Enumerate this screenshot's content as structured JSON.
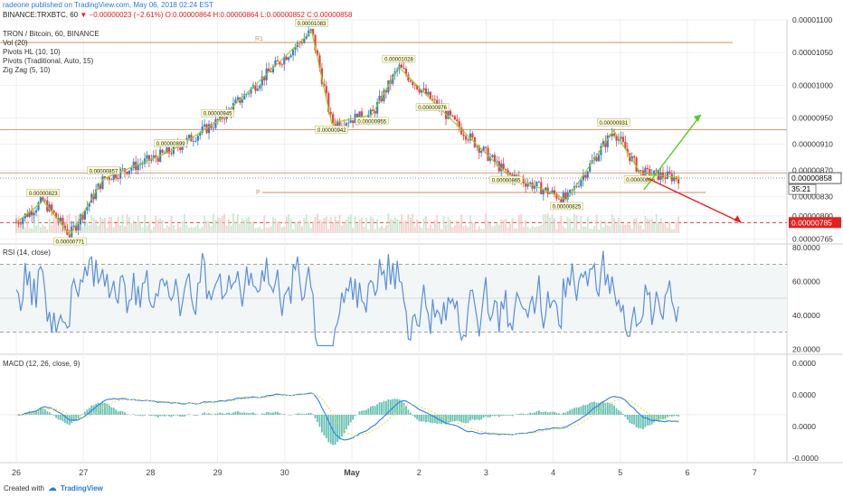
{
  "header": {
    "published": "radeone published on TradingView.com, May 06, 2018 02:24 EST",
    "symbol_line": "BINANCE:TRXBTC, 60",
    "change_text": "▼ −0.00000023 (−2.61%)",
    "ohlc": "O:0.00000864 H:0.00000864 L:0.00000852 C:0.00000858"
  },
  "indicators": {
    "title": "TRON / Bitcoin, 60, BINANCE",
    "vol": "Vol (20)",
    "pivots_hl": "Pivots HL (10, 10)",
    "pivots_trad": "Pivots (Traditional, Auto, 15)",
    "zigzag": "Zig Zag (5, 10)",
    "rsi": "RSI (14, close)",
    "macd": "MACD (12, 26, close, 9)"
  },
  "footer": {
    "created_with": "Created with",
    "brand": "TradingView"
  },
  "colors": {
    "up": "#3a7fc3",
    "down": "#e8413c",
    "zigzag": "#9ccc2e",
    "pivot": "#c89266",
    "rsi": "#5b8fd8",
    "macd": "#2f7fe0",
    "signal": "#e3e34d",
    "hist": "#4cb6a4",
    "green_arrow": "#55cc22",
    "red_arrow": "#e32020",
    "price_label_bg": "#ffffff",
    "red_label_bg": "#e32020"
  },
  "chart_data": [
    {
      "type": "candlestick",
      "title": "TRON / Bitcoin, 60, BINANCE",
      "x_ticks": [
        "26",
        "27",
        "28",
        "29",
        "30",
        "May",
        "2",
        "3",
        "4",
        "5",
        "6",
        "7"
      ],
      "y_ticks": [
        "0.00001100",
        "0.00001050",
        "0.00001000",
        "0.00000950",
        "0.00000910",
        "0.00000870",
        "0.00000858",
        "0.00000830",
        "0.00000800",
        "0.00000785",
        "0.00000765"
      ],
      "ylim": [
        7.6e-06,
        1.1e-05
      ],
      "last_price": "0.00000858",
      "countdown": "35:21",
      "projection_price": "0.00000785",
      "pivot_labels": [
        "R1",
        "P"
      ],
      "pivot_levels": [
        1.06e-05,
        8.36e-06
      ],
      "swing_points": [
        {
          "label": "0.00000771",
          "x": 26.8,
          "y": 7.71e-06,
          "pos": "low"
        },
        {
          "label": "0.00000823",
          "x": 26.4,
          "y": 8.23e-06,
          "pos": "high"
        },
        {
          "label": "0.00000857",
          "x": 27.3,
          "y": 8.57e-06,
          "pos": "high"
        },
        {
          "label": "0.00000899",
          "x": 28.3,
          "y": 8.99e-06,
          "pos": "high"
        },
        {
          "label": "0.00000945",
          "x": 29.0,
          "y": 9.45e-06,
          "pos": "high"
        },
        {
          "label": "0.00001083",
          "x": 30.4,
          "y": 1.083e-05,
          "pos": "high"
        },
        {
          "label": "0.00000942",
          "x": 30.7,
          "y": 9.42e-06,
          "pos": "low"
        },
        {
          "label": "0.00000955",
          "x": 31.3,
          "y": 9.55e-06,
          "pos": "low"
        },
        {
          "label": "0.00001028",
          "x": 31.7,
          "y": 1.028e-05,
          "pos": "high"
        },
        {
          "label": "0.00000976",
          "x": 32.2,
          "y": 9.76e-06,
          "pos": "low"
        },
        {
          "label": "0.00000865",
          "x": 33.3,
          "y": 8.65e-06,
          "pos": "low"
        },
        {
          "label": "0.00000825",
          "x": 34.2,
          "y": 8.25e-06,
          "pos": "low"
        },
        {
          "label": "0.00000931",
          "x": 34.9,
          "y": 9.31e-06,
          "pos": "high"
        },
        {
          "label": "0.00000866",
          "x": 35.3,
          "y": 8.66e-06,
          "pos": "low"
        }
      ]
    },
    {
      "type": "line",
      "title": "RSI (14, close)",
      "y_ticks": [
        "80.0000",
        "60.0000",
        "40.0000",
        "20.0000"
      ],
      "ylim": [
        18,
        82
      ],
      "bands": [
        70,
        30
      ]
    },
    {
      "type": "line",
      "title": "MACD (12, 26, close, 9)",
      "y_ticks": [
        "0.0000",
        "0.0000",
        "0.0000",
        "-0.0000"
      ],
      "series": [
        {
          "name": "MACD"
        },
        {
          "name": "Signal"
        },
        {
          "name": "Histogram"
        }
      ]
    }
  ]
}
